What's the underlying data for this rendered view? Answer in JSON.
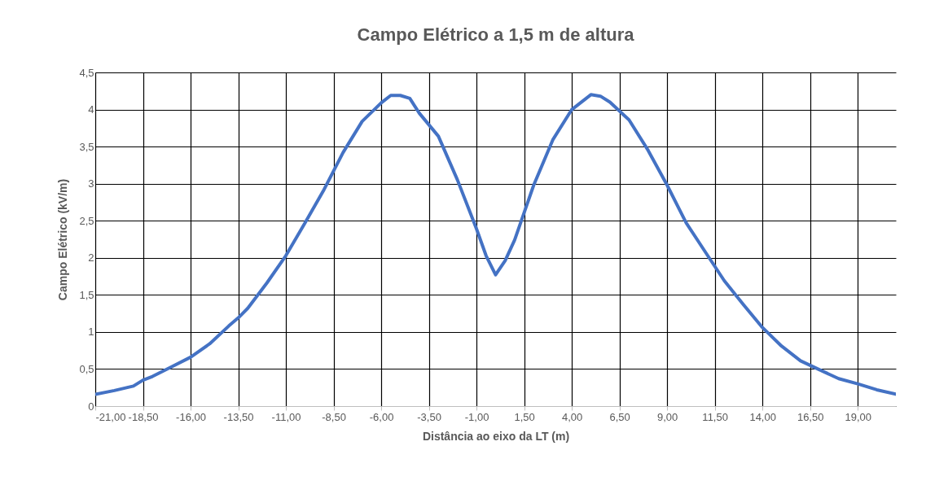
{
  "chart_data": {
    "type": "line",
    "title": "Campo Elétrico a 1,5 m de altura",
    "xlabel": "Distância  ao eixo da LT (m)",
    "ylabel": "Campo Elétrico  (kV/m)",
    "x": [
      -21,
      -20,
      -19,
      -18.5,
      -18,
      -17,
      -16,
      -15,
      -14,
      -13.5,
      -13,
      -12,
      -11,
      -10,
      -9,
      -8,
      -7,
      -6,
      -5.5,
      -5,
      -4.5,
      -4,
      -3,
      -2,
      -1,
      -0.5,
      0,
      0.5,
      1,
      2,
      3,
      4,
      5,
      5.5,
      6,
      7,
      8,
      9,
      10,
      11,
      12,
      13,
      14,
      15,
      16,
      17,
      18,
      19,
      20,
      21
    ],
    "series": [
      {
        "color": "#4472c4",
        "values": [
          0.16,
          0.21,
          0.27,
          0.35,
          0.4,
          0.53,
          0.66,
          0.84,
          1.08,
          1.19,
          1.32,
          1.66,
          2.03,
          2.47,
          2.92,
          3.42,
          3.84,
          4.09,
          4.19,
          4.19,
          4.15,
          3.95,
          3.64,
          3.05,
          2.39,
          2.03,
          1.77,
          1.96,
          2.24,
          2.98,
          3.59,
          4.0,
          4.2,
          4.18,
          4.1,
          3.86,
          3.45,
          2.98,
          2.47,
          2.08,
          1.69,
          1.37,
          1.06,
          0.81,
          0.61,
          0.49,
          0.37,
          0.3,
          0.22,
          0.16
        ]
      }
    ],
    "xlim": [
      -21,
      21
    ],
    "xticks": [
      {
        "value": -21,
        "label": "-21,00"
      },
      {
        "value": -18.5,
        "label": "-18,50"
      },
      {
        "value": -16,
        "label": "-16,00"
      },
      {
        "value": -13.5,
        "label": "-13,50"
      },
      {
        "value": -11,
        "label": "-11,00"
      },
      {
        "value": -8.5,
        "label": "-8,50"
      },
      {
        "value": -6,
        "label": "-6,00"
      },
      {
        "value": -3.5,
        "label": "-3,50"
      },
      {
        "value": -1,
        "label": "-1,00"
      },
      {
        "value": 1.5,
        "label": "1,50"
      },
      {
        "value": 4,
        "label": "4,00"
      },
      {
        "value": 6.5,
        "label": "6,50"
      },
      {
        "value": 9,
        "label": "9,00"
      },
      {
        "value": 11.5,
        "label": "11,50"
      },
      {
        "value": 14,
        "label": "14,00"
      },
      {
        "value": 16.5,
        "label": "16,50"
      },
      {
        "value": 19,
        "label": "19,00"
      }
    ],
    "ylim": [
      0,
      4.5
    ],
    "yticks": [
      0,
      {
        "value": 0.5,
        "label": "0,5"
      },
      1,
      {
        "value": 1.5,
        "label": "1,5"
      },
      2,
      {
        "value": 2.5,
        "label": "2,5"
      },
      3,
      {
        "value": 3.5,
        "label": "3,5"
      },
      4,
      {
        "value": 4.5,
        "label": "4,5"
      }
    ],
    "grid": true,
    "marker": "none",
    "line_style": "solid"
  }
}
